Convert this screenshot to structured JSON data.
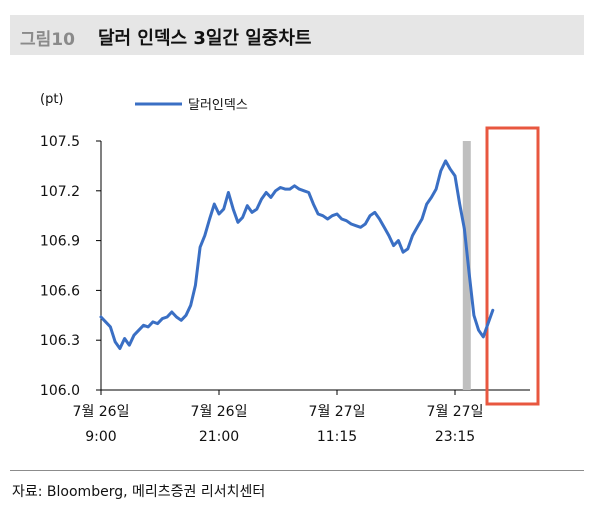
{
  "header": {
    "figure_number": "그림10",
    "title": "달러 인덱스 3일간 일중차트"
  },
  "source": "자료: Bloomberg, 메리츠증권 리서치센터",
  "colors": {
    "line": "#3a6fc4",
    "highlight_bar": "#bfbfbf",
    "highlight_box": "#e8573f",
    "title_bg": "#e6e6e6"
  },
  "chart_data": {
    "type": "line",
    "unit_label": "(pt)",
    "legend": "달러인덱스",
    "legend_position": "top-center",
    "ylim": [
      106.0,
      107.5
    ],
    "yticks": [
      "107.5",
      "107.2",
      "106.9",
      "106.6",
      "106.3",
      "106.0"
    ],
    "grid": false,
    "x_labels": [
      {
        "date": "7월 26일",
        "time": "9:00"
      },
      {
        "date": "7월 26일",
        "time": "21:00"
      },
      {
        "date": "7월 27일",
        "time": "11:15"
      },
      {
        "date": "7월 27일",
        "time": "23:15"
      }
    ],
    "x_index_range": [
      0,
      100
    ],
    "x_label_positions": [
      0,
      25,
      50,
      75
    ],
    "series": [
      {
        "name": "달러인덱스",
        "points": [
          [
            0,
            106.44
          ],
          [
            1,
            106.41
          ],
          [
            2,
            106.38
          ],
          [
            3,
            106.29
          ],
          [
            4,
            106.25
          ],
          [
            5,
            106.31
          ],
          [
            6,
            106.27
          ],
          [
            7,
            106.33
          ],
          [
            8,
            106.36
          ],
          [
            9,
            106.39
          ],
          [
            10,
            106.38
          ],
          [
            11,
            106.41
          ],
          [
            12,
            106.4
          ],
          [
            13,
            106.43
          ],
          [
            14,
            106.44
          ],
          [
            15,
            106.47
          ],
          [
            16,
            106.44
          ],
          [
            17,
            106.42
          ],
          [
            18,
            106.45
          ],
          [
            19,
            106.51
          ],
          [
            20,
            106.63
          ],
          [
            21,
            106.86
          ],
          [
            22,
            106.93
          ],
          [
            23,
            107.03
          ],
          [
            24,
            107.12
          ],
          [
            25,
            107.06
          ],
          [
            26,
            107.09
          ],
          [
            27,
            107.19
          ],
          [
            28,
            107.09
          ],
          [
            29,
            107.01
          ],
          [
            30,
            107.04
          ],
          [
            31,
            107.11
          ],
          [
            32,
            107.07
          ],
          [
            33,
            107.09
          ],
          [
            34,
            107.15
          ],
          [
            35,
            107.19
          ],
          [
            36,
            107.16
          ],
          [
            37,
            107.2
          ],
          [
            38,
            107.22
          ],
          [
            39,
            107.21
          ],
          [
            40,
            107.21
          ],
          [
            41,
            107.23
          ],
          [
            42,
            107.21
          ],
          [
            43,
            107.2
          ],
          [
            44,
            107.19
          ],
          [
            45,
            107.12
          ],
          [
            46,
            107.06
          ],
          [
            47,
            107.05
          ],
          [
            48,
            107.03
          ],
          [
            49,
            107.05
          ],
          [
            50,
            107.06
          ],
          [
            51,
            107.03
          ],
          [
            52,
            107.02
          ],
          [
            53,
            107.0
          ],
          [
            54,
            106.99
          ],
          [
            55,
            106.98
          ],
          [
            56,
            107.0
          ],
          [
            57,
            107.05
          ],
          [
            58,
            107.07
          ],
          [
            59,
            107.03
          ],
          [
            60,
            106.98
          ],
          [
            61,
            106.93
          ],
          [
            62,
            106.87
          ],
          [
            63,
            106.9
          ],
          [
            64,
            106.83
          ],
          [
            65,
            106.85
          ],
          [
            66,
            106.93
          ],
          [
            67,
            106.98
          ],
          [
            68,
            107.03
          ],
          [
            69,
            107.12
          ],
          [
            70,
            107.16
          ],
          [
            71,
            107.21
          ],
          [
            72,
            107.32
          ],
          [
            73,
            107.38
          ],
          [
            74,
            107.33
          ],
          [
            75,
            107.29
          ],
          [
            76,
            107.12
          ],
          [
            77,
            106.97
          ],
          [
            78,
            106.7
          ],
          [
            79,
            106.45
          ],
          [
            80,
            106.36
          ],
          [
            81,
            106.32
          ],
          [
            82,
            106.4
          ],
          [
            83,
            106.48
          ]
        ]
      }
    ],
    "highlight_index": 77.5
  }
}
